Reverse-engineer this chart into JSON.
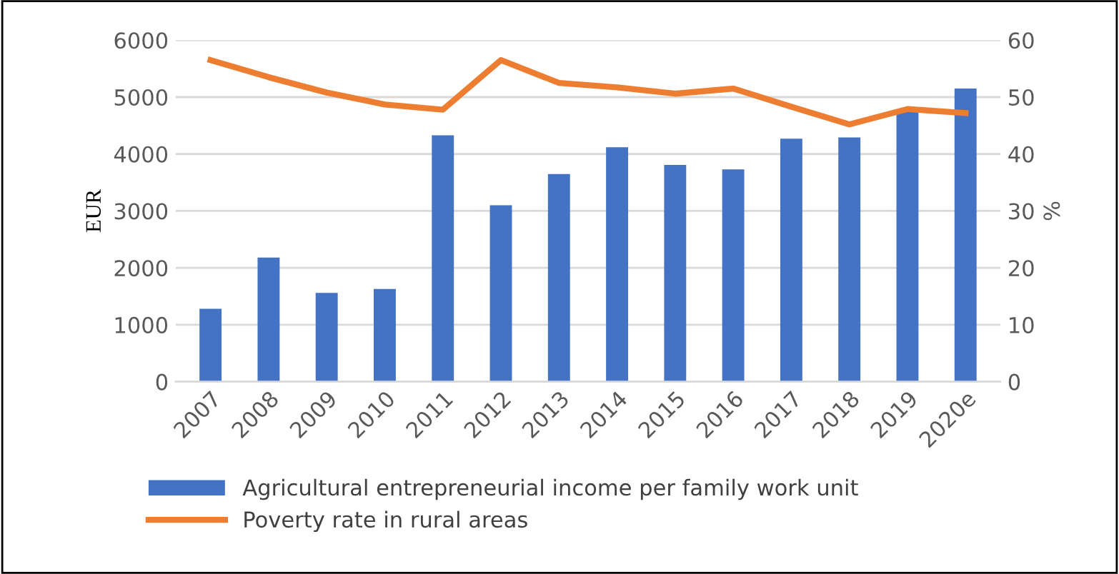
{
  "chart_data": {
    "type": "bar",
    "categories": [
      "2007",
      "2008",
      "2009",
      "2010",
      "2011",
      "2012",
      "2013",
      "2014",
      "2015",
      "2016",
      "2017",
      "2018",
      "2019",
      "2020e"
    ],
    "ylabel": "EUR",
    "y2label": "%",
    "ylim": [
      0,
      6000
    ],
    "yticks": [
      0,
      1000,
      2000,
      3000,
      4000,
      5000,
      6000
    ],
    "y2lim": [
      0,
      60
    ],
    "y2ticks": [
      0,
      10,
      20,
      30,
      40,
      50,
      60
    ],
    "grid": "y",
    "legend": "bottom",
    "series": [
      {
        "name": "Agricultural entrepreneurial income per family work unit",
        "color": "#4472c4",
        "values": [
          1280,
          2180,
          1560,
          1630,
          4330,
          3100,
          3650,
          4120,
          3810,
          3730,
          4270,
          4290,
          4780,
          5150
        ]
      },
      {
        "name": "Poverty rate in rural areas",
        "type": "line",
        "axis": "y2",
        "color": "#ed7d31",
        "values": [
          56.5,
          53.5,
          50.8,
          48.7,
          47.8,
          56.5,
          52.5,
          51.7,
          50.6,
          51.5,
          48.3,
          45.2,
          47.9,
          47.2
        ]
      }
    ]
  }
}
